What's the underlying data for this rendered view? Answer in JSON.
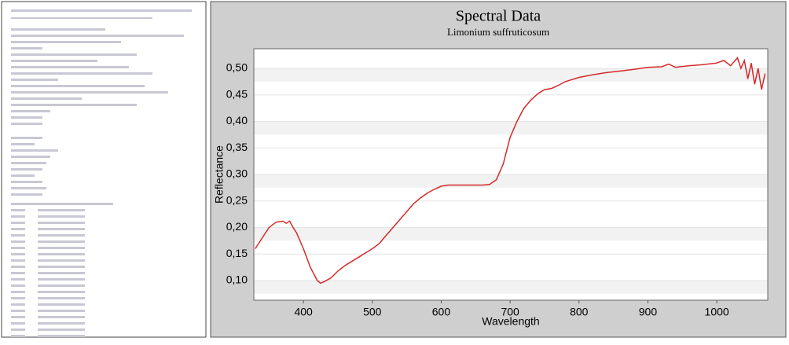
{
  "chart_data": {
    "type": "line",
    "title": "Spectral Data",
    "subtitle": "Limonium suffruticosum",
    "x_label": "Wavelength",
    "y_label": "Reflectance",
    "x": [
      330,
      340,
      350,
      360,
      370,
      375,
      380,
      385,
      390,
      400,
      410,
      420,
      425,
      430,
      440,
      450,
      460,
      470,
      480,
      490,
      500,
      510,
      520,
      530,
      540,
      550,
      560,
      570,
      580,
      590,
      600,
      610,
      620,
      640,
      660,
      670,
      680,
      690,
      700,
      710,
      720,
      730,
      740,
      750,
      760,
      770,
      780,
      800,
      820,
      840,
      860,
      880,
      900,
      920,
      930,
      940,
      960,
      980,
      1000,
      1010,
      1020,
      1030,
      1035,
      1040,
      1045,
      1050,
      1055,
      1060,
      1065,
      1070
    ],
    "series": [
      {
        "name": "Reflectance",
        "color": "#d42a2a",
        "values": [
          0.16,
          0.18,
          0.2,
          0.21,
          0.212,
          0.208,
          0.212,
          0.2,
          0.19,
          0.16,
          0.125,
          0.1,
          0.095,
          0.098,
          0.105,
          0.118,
          0.128,
          0.136,
          0.144,
          0.152,
          0.16,
          0.17,
          0.185,
          0.2,
          0.215,
          0.23,
          0.245,
          0.256,
          0.265,
          0.272,
          0.278,
          0.28,
          0.28,
          0.28,
          0.28,
          0.281,
          0.29,
          0.32,
          0.37,
          0.4,
          0.425,
          0.44,
          0.452,
          0.46,
          0.462,
          0.468,
          0.475,
          0.483,
          0.488,
          0.492,
          0.495,
          0.498,
          0.502,
          0.503,
          0.508,
          0.502,
          0.505,
          0.507,
          0.51,
          0.515,
          0.505,
          0.52,
          0.5,
          0.515,
          0.48,
          0.51,
          0.47,
          0.5,
          0.46,
          0.49
        ]
      }
    ],
    "xlim": [
      328,
      1074
    ],
    "ylim": [
      0.063,
      0.537
    ],
    "xticks": [
      400,
      500,
      600,
      700,
      800,
      900,
      1000
    ],
    "yticks": [
      {
        "value": 0.1,
        "label": "0,10"
      },
      {
        "value": 0.15,
        "label": "0,15"
      },
      {
        "value": 0.2,
        "label": "0,20"
      },
      {
        "value": 0.25,
        "label": "0,25"
      },
      {
        "value": 0.3,
        "label": "0,30"
      },
      {
        "value": 0.35,
        "label": "0,35"
      },
      {
        "value": 0.4,
        "label": "0,40"
      },
      {
        "value": 0.45,
        "label": "0,45"
      },
      {
        "value": 0.5,
        "label": "0,50"
      }
    ],
    "grid": true
  }
}
